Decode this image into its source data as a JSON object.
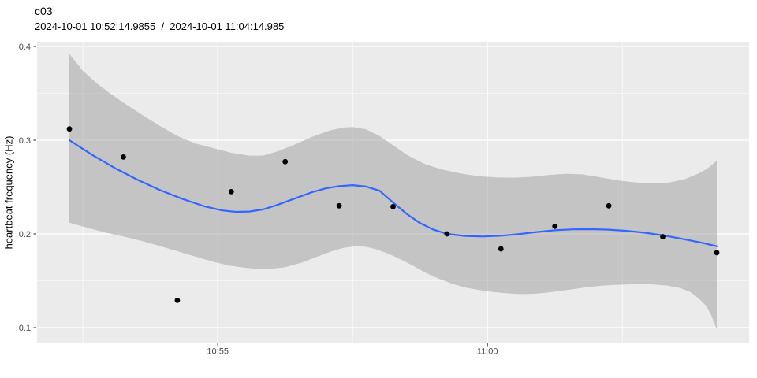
{
  "header": {
    "title": "c03",
    "subtitle": "2024-10-01 10:52:14.9855  /  2024-10-01 11:04:14.985"
  },
  "axes": {
    "y": {
      "label": "heartbeat frequency (Hz)",
      "ticks": [
        0.1,
        0.2,
        0.3,
        0.4
      ],
      "minor_ticks": [
        0.15,
        0.25,
        0.35
      ],
      "domain": [
        0.084,
        0.405
      ]
    },
    "x": {
      "ticks": [
        {
          "label": "10:55",
          "t": 165
        },
        {
          "label": "11:00",
          "t": 465
        }
      ],
      "minor_ticks_t": [
        15,
        315,
        615
      ],
      "domain_t": [
        -36,
        756
      ]
    }
  },
  "chart_data": {
    "type": "scatter",
    "title": "c03",
    "subtitle": "2024-10-01 10:52:14.9855  /  2024-10-01 11:04:14.985",
    "xlabel": "",
    "ylabel": "heartbeat frequency (Hz)",
    "x_tick_labels": [
      "10:55",
      "11:00"
    ],
    "y_tick_labels": [
      "0.1",
      "0.2",
      "0.3",
      "0.4"
    ],
    "ylim": [
      0.084,
      0.405
    ],
    "x_window": [
      "10:52:14.9855",
      "11:04:14.985"
    ],
    "grid": true,
    "legend": false,
    "points": [
      {
        "time": "10:52:15",
        "t": 0,
        "hz": 0.312
      },
      {
        "time": "10:53:15",
        "t": 60,
        "hz": 0.282
      },
      {
        "time": "10:54:15",
        "t": 120,
        "hz": 0.129
      },
      {
        "time": "10:55:15",
        "t": 180,
        "hz": 0.245
      },
      {
        "time": "10:56:15",
        "t": 240,
        "hz": 0.277
      },
      {
        "time": "10:57:15",
        "t": 300,
        "hz": 0.23
      },
      {
        "time": "10:58:15",
        "t": 360,
        "hz": 0.229
      },
      {
        "time": "10:59:15",
        "t": 420,
        "hz": 0.2
      },
      {
        "time": "11:00:15",
        "t": 480,
        "hz": 0.184
      },
      {
        "time": "11:01:15",
        "t": 540,
        "hz": 0.208
      },
      {
        "time": "11:02:15",
        "t": 600,
        "hz": 0.23
      },
      {
        "time": "11:03:15",
        "t": 660,
        "hz": 0.197
      },
      {
        "time": "11:04:15",
        "t": 720,
        "hz": 0.18
      }
    ],
    "smooth": [
      [
        0,
        0.3
      ],
      [
        25,
        0.2845
      ],
      [
        50,
        0.2705
      ],
      [
        75,
        0.258
      ],
      [
        100,
        0.247
      ],
      [
        125,
        0.2375
      ],
      [
        150,
        0.2295
      ],
      [
        170,
        0.225
      ],
      [
        185,
        0.2235
      ],
      [
        200,
        0.2238
      ],
      [
        215,
        0.226
      ],
      [
        230,
        0.2305
      ],
      [
        250,
        0.2375
      ],
      [
        270,
        0.2445
      ],
      [
        285,
        0.2485
      ],
      [
        300,
        0.251
      ],
      [
        315,
        0.252
      ],
      [
        330,
        0.2505
      ],
      [
        345,
        0.246
      ],
      [
        360,
        0.2335
      ],
      [
        375,
        0.2215
      ],
      [
        390,
        0.2115
      ],
      [
        405,
        0.2045
      ],
      [
        420,
        0.2
      ],
      [
        440,
        0.1978
      ],
      [
        460,
        0.1972
      ],
      [
        480,
        0.198
      ],
      [
        500,
        0.1998
      ],
      [
        520,
        0.202
      ],
      [
        540,
        0.2038
      ],
      [
        560,
        0.2048
      ],
      [
        580,
        0.205
      ],
      [
        600,
        0.2045
      ],
      [
        620,
        0.2032
      ],
      [
        640,
        0.2012
      ],
      [
        660,
        0.1985
      ],
      [
        680,
        0.195
      ],
      [
        700,
        0.1912
      ],
      [
        720,
        0.1868
      ]
    ],
    "ribbon_upper": [
      [
        0,
        0.392
      ],
      [
        15,
        0.374
      ],
      [
        30,
        0.361
      ],
      [
        45,
        0.35
      ],
      [
        60,
        0.34
      ],
      [
        80,
        0.3275
      ],
      [
        100,
        0.3155
      ],
      [
        120,
        0.3045
      ],
      [
        140,
        0.2965
      ],
      [
        160,
        0.2915
      ],
      [
        180,
        0.2865
      ],
      [
        200,
        0.2835
      ],
      [
        215,
        0.2835
      ],
      [
        230,
        0.2875
      ],
      [
        250,
        0.295
      ],
      [
        270,
        0.3035
      ],
      [
        290,
        0.3105
      ],
      [
        305,
        0.3135
      ],
      [
        315,
        0.314
      ],
      [
        330,
        0.3115
      ],
      [
        345,
        0.3045
      ],
      [
        360,
        0.2945
      ],
      [
        375,
        0.2845
      ],
      [
        395,
        0.2745
      ],
      [
        415,
        0.2685
      ],
      [
        435,
        0.2645
      ],
      [
        455,
        0.2615
      ],
      [
        475,
        0.2602
      ],
      [
        495,
        0.26
      ],
      [
        515,
        0.261
      ],
      [
        535,
        0.263
      ],
      [
        552,
        0.264
      ],
      [
        570,
        0.2635
      ],
      [
        590,
        0.2605
      ],
      [
        610,
        0.257
      ],
      [
        630,
        0.2548
      ],
      [
        650,
        0.2538
      ],
      [
        668,
        0.2548
      ],
      [
        685,
        0.2585
      ],
      [
        700,
        0.2645
      ],
      [
        710,
        0.27
      ],
      [
        720,
        0.278
      ]
    ],
    "ribbon_lower": [
      [
        0,
        0.212
      ],
      [
        20,
        0.2065
      ],
      [
        40,
        0.2015
      ],
      [
        60,
        0.1972
      ],
      [
        80,
        0.1925
      ],
      [
        100,
        0.1872
      ],
      [
        120,
        0.1815
      ],
      [
        140,
        0.1758
      ],
      [
        160,
        0.1702
      ],
      [
        178,
        0.1662
      ],
      [
        195,
        0.1638
      ],
      [
        210,
        0.1626
      ],
      [
        225,
        0.1628
      ],
      [
        240,
        0.1645
      ],
      [
        258,
        0.1692
      ],
      [
        275,
        0.1755
      ],
      [
        292,
        0.1815
      ],
      [
        305,
        0.1852
      ],
      [
        318,
        0.1868
      ],
      [
        330,
        0.1862
      ],
      [
        342,
        0.1832
      ],
      [
        355,
        0.1788
      ],
      [
        368,
        0.173
      ],
      [
        382,
        0.1662
      ],
      [
        395,
        0.159
      ],
      [
        410,
        0.1525
      ],
      [
        425,
        0.147
      ],
      [
        440,
        0.1428
      ],
      [
        455,
        0.1402
      ],
      [
        470,
        0.1382
      ],
      [
        485,
        0.1368
      ],
      [
        500,
        0.1358
      ],
      [
        515,
        0.136
      ],
      [
        530,
        0.1372
      ],
      [
        545,
        0.139
      ],
      [
        560,
        0.141
      ],
      [
        575,
        0.143
      ],
      [
        590,
        0.1445
      ],
      [
        605,
        0.1455
      ],
      [
        620,
        0.146
      ],
      [
        635,
        0.1465
      ],
      [
        650,
        0.146
      ],
      [
        665,
        0.1448
      ],
      [
        678,
        0.1425
      ],
      [
        690,
        0.1385
      ],
      [
        700,
        0.131
      ],
      [
        708,
        0.1235
      ],
      [
        714,
        0.113
      ],
      [
        720,
        0.098
      ]
    ],
    "colors": {
      "panel_background": "#EBEBEB",
      "gridline": "#FFFFFF",
      "ribbon": "#999999",
      "ribbon_opacity": 0.48,
      "smooth_line": "#3366FF",
      "point": "#000000",
      "tick_text": "#4D4D4D",
      "tick_mark": "#333333"
    }
  }
}
